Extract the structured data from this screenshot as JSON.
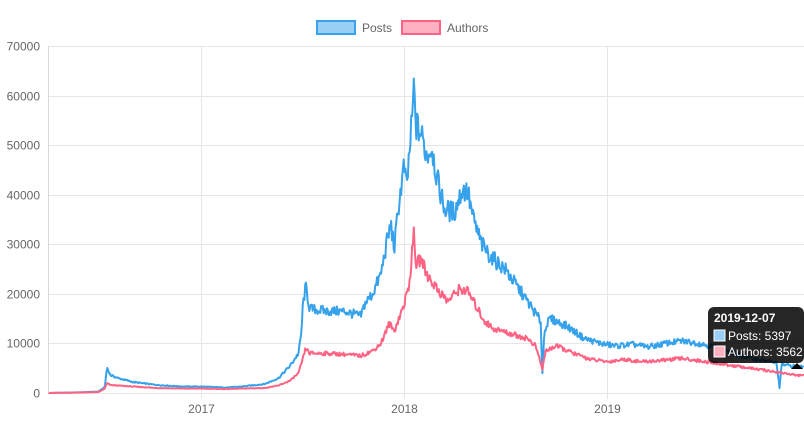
{
  "chart_data": {
    "type": "line",
    "x_axis": {
      "type": "time",
      "ticks": [
        "2017",
        "2018",
        "2019"
      ],
      "range": [
        "2016-04-01",
        "2019-12-20"
      ]
    },
    "y_axis": {
      "range": [
        0,
        70000
      ],
      "ticks": [
        0,
        10000,
        20000,
        30000,
        40000,
        50000,
        60000,
        70000
      ]
    },
    "grid": true,
    "legend_position": "top-center",
    "series": [
      {
        "name": "Posts",
        "color": "#36a2eb",
        "fill": "#9ad0f5",
        "points": [
          [
            "2016-04-01",
            0
          ],
          [
            "2016-06-01",
            150
          ],
          [
            "2016-07-01",
            300
          ],
          [
            "2016-07-12",
            1200
          ],
          [
            "2016-07-16",
            5200
          ],
          [
            "2016-07-22",
            3600
          ],
          [
            "2016-08-05",
            3000
          ],
          [
            "2016-09-01",
            2200
          ],
          [
            "2016-10-15",
            1600
          ],
          [
            "2016-12-01",
            1300
          ],
          [
            "2017-01-01",
            1300
          ],
          [
            "2017-02-15",
            1100
          ],
          [
            "2017-03-15",
            1300
          ],
          [
            "2017-04-25",
            1800
          ],
          [
            "2017-05-20",
            3000
          ],
          [
            "2017-06-10",
            5500
          ],
          [
            "2017-06-25",
            8000
          ],
          [
            "2017-06-30",
            12000
          ],
          [
            "2017-07-03",
            18000
          ],
          [
            "2017-07-08",
            21500
          ],
          [
            "2017-07-15",
            17000
          ],
          [
            "2017-08-15",
            16500
          ],
          [
            "2017-09-15",
            16500
          ],
          [
            "2017-10-15",
            15500
          ],
          [
            "2017-10-22",
            18000
          ],
          [
            "2017-11-05",
            20000
          ],
          [
            "2017-11-20",
            24000
          ],
          [
            "2017-11-30",
            30000
          ],
          [
            "2017-12-08",
            34000
          ],
          [
            "2017-12-14",
            29000
          ],
          [
            "2017-12-22",
            38000
          ],
          [
            "2018-01-01",
            46000
          ],
          [
            "2018-01-05",
            41000
          ],
          [
            "2018-01-10",
            48000
          ],
          [
            "2018-01-15",
            55000
          ],
          [
            "2018-01-18",
            61500
          ],
          [
            "2018-01-22",
            54000
          ],
          [
            "2018-02-01",
            52000
          ],
          [
            "2018-02-10",
            48000
          ],
          [
            "2018-02-20",
            49500
          ],
          [
            "2018-03-01",
            43000
          ],
          [
            "2018-03-15",
            37000
          ],
          [
            "2018-04-01",
            36500
          ],
          [
            "2018-04-15",
            41000
          ],
          [
            "2018-04-25",
            40500
          ],
          [
            "2018-05-05",
            35000
          ],
          [
            "2018-05-20",
            30000
          ],
          [
            "2018-06-05",
            27500
          ],
          [
            "2018-07-01",
            25000
          ],
          [
            "2018-08-01",
            20000
          ],
          [
            "2018-08-25",
            16000
          ],
          [
            "2018-09-03",
            14500
          ],
          [
            "2018-09-06",
            4000
          ],
          [
            "2018-09-10",
            13000
          ],
          [
            "2018-09-20",
            15000
          ],
          [
            "2018-10-20",
            13500
          ],
          [
            "2018-11-20",
            11000
          ],
          [
            "2018-12-20",
            10000
          ],
          [
            "2019-01-15",
            9500
          ],
          [
            "2019-02-15",
            9800
          ],
          [
            "2019-03-15",
            9300
          ],
          [
            "2019-04-15",
            10000
          ],
          [
            "2019-05-15",
            10500
          ],
          [
            "2019-06-15",
            10000
          ],
          [
            "2019-07-15",
            9200
          ],
          [
            "2019-08-15",
            8000
          ],
          [
            "2019-09-15",
            7000
          ],
          [
            "2019-10-15",
            6500
          ],
          [
            "2019-11-01",
            6000
          ],
          [
            "2019-11-06",
            1000
          ],
          [
            "2019-11-10",
            5800
          ],
          [
            "2019-11-25",
            5500
          ],
          [
            "2019-12-07",
            5397
          ],
          [
            "2019-12-20",
            5300
          ]
        ]
      },
      {
        "name": "Authors",
        "color": "#ff6384",
        "fill": "#ffb1c1",
        "points": [
          [
            "2016-04-01",
            0
          ],
          [
            "2016-06-01",
            100
          ],
          [
            "2016-07-01",
            200
          ],
          [
            "2016-07-12",
            900
          ],
          [
            "2016-07-16",
            2000
          ],
          [
            "2016-07-22",
            1600
          ],
          [
            "2016-08-05",
            1500
          ],
          [
            "2016-09-01",
            1300
          ],
          [
            "2016-10-15",
            1000
          ],
          [
            "2016-12-01",
            900
          ],
          [
            "2017-01-01",
            900
          ],
          [
            "2017-02-15",
            800
          ],
          [
            "2017-03-15",
            900
          ],
          [
            "2017-04-25",
            1000
          ],
          [
            "2017-05-20",
            1500
          ],
          [
            "2017-06-10",
            2500
          ],
          [
            "2017-06-25",
            4000
          ],
          [
            "2017-07-03",
            7000
          ],
          [
            "2017-07-08",
            9000
          ],
          [
            "2017-07-15",
            8000
          ],
          [
            "2017-08-15",
            8000
          ],
          [
            "2017-09-15",
            7800
          ],
          [
            "2017-10-15",
            7500
          ],
          [
            "2017-11-05",
            8500
          ],
          [
            "2017-11-20",
            10000
          ],
          [
            "2017-12-05",
            14000
          ],
          [
            "2017-12-14",
            12500
          ],
          [
            "2018-01-01",
            18000
          ],
          [
            "2018-01-10",
            22000
          ],
          [
            "2018-01-18",
            32000
          ],
          [
            "2018-01-22",
            26000
          ],
          [
            "2018-02-01",
            27000
          ],
          [
            "2018-02-10",
            24000
          ],
          [
            "2018-03-01",
            21000
          ],
          [
            "2018-03-20",
            18500
          ],
          [
            "2018-04-10",
            21000
          ],
          [
            "2018-04-25",
            20500
          ],
          [
            "2018-05-10",
            17500
          ],
          [
            "2018-05-25",
            14500
          ],
          [
            "2018-06-10",
            13000
          ],
          [
            "2018-07-10",
            12000
          ],
          [
            "2018-08-10",
            11000
          ],
          [
            "2018-08-25",
            9500
          ],
          [
            "2018-09-06",
            4800
          ],
          [
            "2018-09-12",
            8500
          ],
          [
            "2018-10-01",
            9500
          ],
          [
            "2018-11-01",
            8000
          ],
          [
            "2018-12-01",
            6800
          ],
          [
            "2019-01-01",
            6300
          ],
          [
            "2019-02-01",
            6800
          ],
          [
            "2019-03-01",
            6300
          ],
          [
            "2019-04-01",
            6500
          ],
          [
            "2019-05-15",
            7000
          ],
          [
            "2019-06-15",
            6500
          ],
          [
            "2019-07-15",
            6000
          ],
          [
            "2019-08-15",
            5500
          ],
          [
            "2019-09-15",
            5000
          ],
          [
            "2019-10-15",
            4500
          ],
          [
            "2019-11-15",
            4000
          ],
          [
            "2019-12-07",
            3562
          ],
          [
            "2019-12-20",
            3500
          ]
        ]
      }
    ],
    "tooltip": {
      "title": "2019-12-07",
      "lines": [
        "Posts: 5397",
        "Authors: 3562"
      ]
    }
  }
}
